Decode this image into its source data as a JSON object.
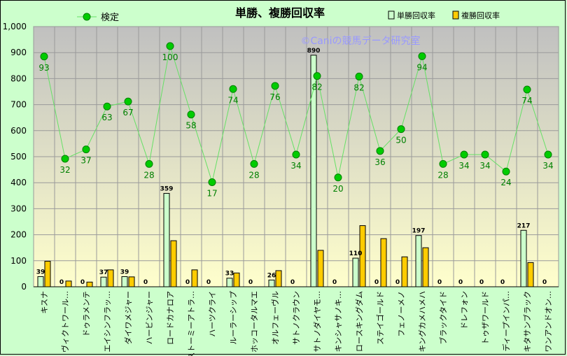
{
  "chart_data": {
    "type": "bar",
    "title": "単勝、複勝回収率",
    "watermark": "©Caniの競馬データ研究室",
    "ylim": [
      0,
      1000
    ],
    "y_ticks": [
      "0",
      "100",
      "200",
      "300",
      "400",
      "500",
      "600",
      "700",
      "800",
      "900",
      "1,000"
    ],
    "legend": {
      "placement": "top"
    },
    "categories": [
      "キスナ",
      "ヴィクトワール…",
      "ドゥラメンテ",
      "エイシンフラッ…",
      "ダイワメジャー",
      "ハービンジャー",
      "ロードカナロア",
      "ストーミーアトラ…",
      "ハーツクライ",
      "ルーラーシップ",
      "ホッコータルマエ",
      "オルフェーヴル",
      "サトノクラウン",
      "サトノダイヤモ…",
      "キンシャサノキ…",
      "ロースキングダム",
      "ステイゴールド",
      "フェノーメノ",
      "キングカメハメハ",
      "ブラックタイド",
      "ドレフォン",
      "トゥザワールド",
      "ディープインパ…",
      "キタサンブラック",
      "ワンアンドオン…"
    ],
    "series": [
      {
        "name": "単勝回収率",
        "color": "#ccffcc",
        "values": [
          39,
          0,
          0,
          37,
          39,
          0,
          359,
          0,
          0,
          33,
          0,
          26,
          0,
          890,
          0,
          110,
          0,
          0,
          197,
          0,
          0,
          0,
          0,
          217,
          0
        ]
      },
      {
        "name": "複勝回収率",
        "color": "#ffcc00",
        "values": [
          98,
          22,
          18,
          65,
          38,
          0,
          177,
          65,
          0,
          53,
          0,
          62,
          0,
          140,
          0,
          235,
          185,
          115,
          150,
          0,
          0,
          0,
          0,
          93,
          0
        ]
      },
      {
        "name": "検定",
        "color": "#00cc00",
        "type": "line",
        "values": [
          93,
          32,
          37,
          63,
          67,
          28,
          100,
          58,
          17,
          74,
          28,
          76,
          34,
          82,
          20,
          82,
          36,
          50,
          94,
          28,
          34,
          34,
          24,
          74,
          34
        ],
        "y_plot": [
          885,
          492,
          528,
          693,
          712,
          472,
          925,
          662,
          402,
          760,
          472,
          772,
          508,
          810,
          420,
          808,
          522,
          606,
          886,
          472,
          508,
          508,
          443,
          758,
          508
        ]
      }
    ],
    "bar_labels": [
      "39",
      "0",
      "0",
      "37",
      "39",
      "0",
      "359",
      "0",
      "0",
      "33",
      "0",
      "26",
      "0",
      "890",
      "0",
      "110",
      "0",
      "0",
      "197",
      "0",
      "0",
      "0",
      "0",
      "217",
      "0"
    ],
    "colors": {
      "page_bg": "#ccffcc",
      "plot_top": "#c0c0c0",
      "plot_bottom": "#ffffcc",
      "watermark": "#9999ff",
      "line_label": "#008000"
    }
  }
}
